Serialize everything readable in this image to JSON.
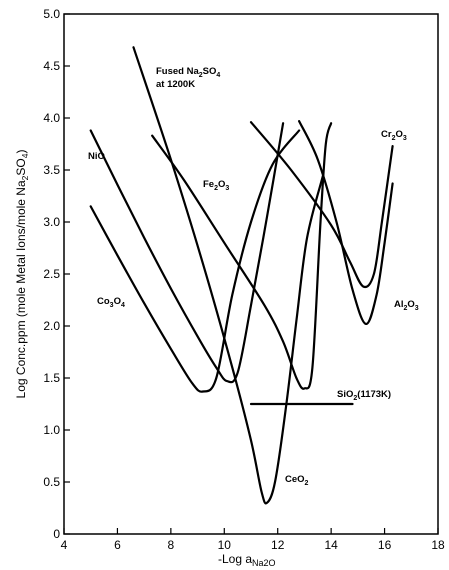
{
  "chart_data": {
    "type": "line",
    "title": "",
    "xlabel": "-Log a",
    "xlabel_sub": "Na2O",
    "ylabel": "Log Conc.ppm (mole Metal Ions/mole Na",
    "ylabel_sub": "2",
    "ylabel_tail": "SO",
    "ylabel_sub2": "4",
    "ylabel_end": ")",
    "xlim": [
      4,
      18
    ],
    "ylim": [
      0,
      5.0
    ],
    "x_ticks": [
      "4",
      "6",
      "8",
      "10",
      "12",
      "14",
      "16",
      "18"
    ],
    "y_ticks": [
      "0",
      "0.5",
      "1.0",
      "1.5",
      "2.0",
      "2.5",
      "3.0",
      "3.5",
      "4.0",
      "4.5",
      "5.0"
    ],
    "grid": false,
    "annotations": {
      "fused_line1": "Fused Na",
      "fused_sub1": "2",
      "fused_so": "SO",
      "fused_sub2": "4",
      "fused_line2": "at 1200K",
      "nio": "NiO",
      "fe": "Fe",
      "fe_sub1": "2",
      "fe_o": "O",
      "fe_sub2": "3",
      "cr": "Cr",
      "cr_sub1": "2",
      "cr_o": "O",
      "cr_sub2": "3",
      "co": "Co",
      "co_sub1": "3",
      "co_o": "O",
      "co_sub2": "4",
      "al": "Al",
      "al_sub1": "2",
      "al_o": "O",
      "al_sub2": "3",
      "sio": "SiO",
      "sio_sub": "2",
      "sio_tail": "(1173K)",
      "ceo": "CeO",
      "ceo_sub": "2"
    },
    "series": [
      {
        "points": [
          [
            6.6,
            4.68
          ],
          [
            8.0,
            3.6
          ],
          [
            9.2,
            2.6
          ],
          [
            10.3,
            1.6
          ],
          [
            11.0,
            0.9
          ],
          [
            11.4,
            0.4
          ],
          [
            11.6,
            0.3
          ],
          [
            11.9,
            0.5
          ],
          [
            12.3,
            1.2
          ],
          [
            12.7,
            2.05
          ],
          [
            13.1,
            2.85
          ],
          [
            13.7,
            3.45
          ]
        ]
      },
      {
        "points": [
          [
            5.0,
            3.88
          ],
          [
            6.0,
            3.36
          ],
          [
            7.0,
            2.85
          ],
          [
            8.0,
            2.36
          ],
          [
            9.0,
            1.9
          ],
          [
            9.7,
            1.6
          ],
          [
            10.1,
            1.47
          ],
          [
            10.5,
            1.55
          ],
          [
            11.0,
            2.2
          ],
          [
            11.6,
            3.05
          ],
          [
            12.2,
            3.95
          ]
        ]
      },
      {
        "points": [
          [
            5.0,
            3.15
          ],
          [
            6.0,
            2.68
          ],
          [
            7.0,
            2.22
          ],
          [
            8.0,
            1.78
          ],
          [
            8.8,
            1.45
          ],
          [
            9.2,
            1.37
          ],
          [
            9.7,
            1.5
          ],
          [
            10.3,
            2.3
          ],
          [
            11.0,
            3.0
          ],
          [
            11.8,
            3.55
          ],
          [
            12.8,
            3.88
          ]
        ]
      },
      {
        "points": [
          [
            7.3,
            3.83
          ],
          [
            8.5,
            3.4
          ],
          [
            10.0,
            2.8
          ],
          [
            11.5,
            2.2
          ],
          [
            12.2,
            1.85
          ],
          [
            12.7,
            1.5
          ],
          [
            13.0,
            1.4
          ],
          [
            13.3,
            1.6
          ],
          [
            13.6,
            3.0
          ],
          [
            13.8,
            3.75
          ],
          [
            14.0,
            3.95
          ]
        ]
      },
      {
        "points": [
          [
            11.0,
            3.96
          ],
          [
            12.5,
            3.5
          ],
          [
            14.0,
            2.97
          ],
          [
            14.7,
            2.62
          ],
          [
            15.2,
            2.38
          ],
          [
            15.6,
            2.5
          ],
          [
            15.9,
            3.0
          ],
          [
            16.3,
            3.73
          ]
        ]
      },
      {
        "points": [
          [
            12.8,
            3.97
          ],
          [
            13.5,
            3.6
          ],
          [
            14.2,
            3.0
          ],
          [
            14.8,
            2.35
          ],
          [
            15.3,
            2.02
          ],
          [
            15.7,
            2.3
          ],
          [
            16.0,
            2.8
          ],
          [
            16.3,
            3.37
          ]
        ]
      },
      {
        "points": [
          [
            11.0,
            1.25
          ],
          [
            14.8,
            1.25
          ]
        ]
      }
    ]
  }
}
